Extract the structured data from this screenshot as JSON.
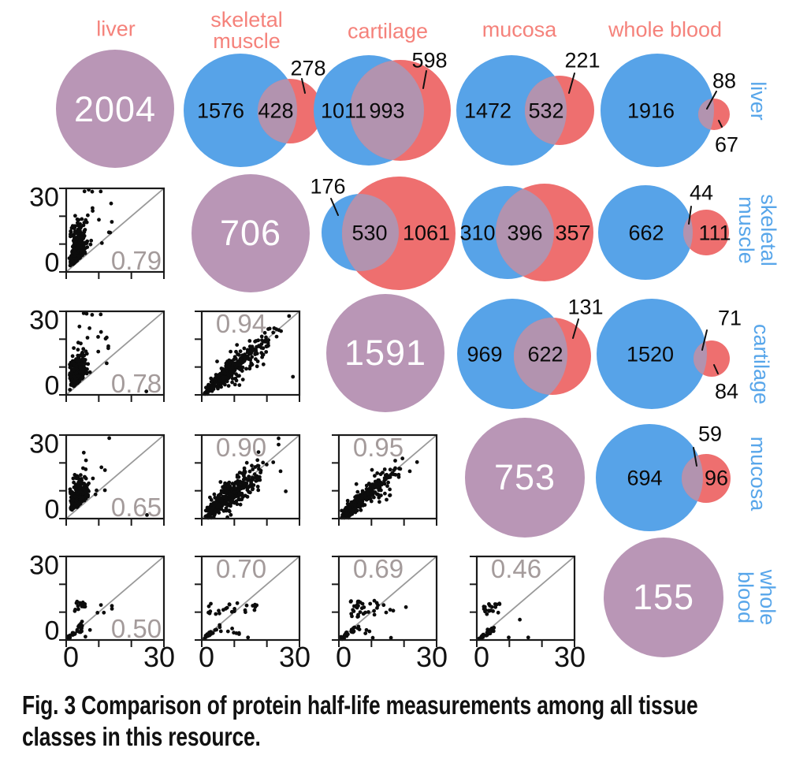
{
  "figure": {
    "colors": {
      "tissue_blue": "#57a3e8",
      "tissue_red": "#ee6f6f",
      "diagonal_purple": "#b996b6",
      "overlap_purple": "#b293af",
      "header_salmon": "#f5827b",
      "row_label_blue": "#58a6ea",
      "correlation_gray": "#a49b9b",
      "identity_line_gray": "#999999"
    },
    "column_headers": [
      "liver",
      "skeletal\nmuscle",
      "cartilage",
      "mucosa",
      "whole blood"
    ],
    "row_labels": [
      "liver",
      "skeletal\nmuscle",
      "cartilage",
      "mucosa",
      "whole blood"
    ],
    "caption_line1": "Fig. 3 Comparison of protein half-life measurements among all tissue",
    "caption_line2": "classes in this resource."
  },
  "chart_data": {
    "type": "matrix",
    "description": "5x5 tissue comparison matrix: diagonal circles show total proteins per tissue; upper triangle shows pairwise Venn overlaps (blue = row tissue only, purple = shared, red = column tissue only); lower triangle shows protein half-life scatter plots with correlation values, axes 0-30 with identity line",
    "tissues": [
      "liver",
      "skeletal muscle",
      "cartilage",
      "mucosa",
      "whole blood"
    ],
    "diagonal_totals": [
      2004,
      706,
      1591,
      753,
      155
    ],
    "axis": {
      "min": 0,
      "max": 30
    },
    "venn": [
      {
        "row": "liver",
        "col": "skeletal muscle",
        "row_only": 1576,
        "shared": 428,
        "col_only": 278
      },
      {
        "row": "liver",
        "col": "cartilage",
        "row_only": 1011,
        "shared": 993,
        "col_only": 598
      },
      {
        "row": "liver",
        "col": "mucosa",
        "row_only": 1472,
        "shared": 532,
        "col_only": 221
      },
      {
        "row": "liver",
        "col": "whole blood",
        "row_only": 1916,
        "shared": 88,
        "col_only": 67
      },
      {
        "row": "skeletal muscle",
        "col": "cartilage",
        "row_only": 176,
        "shared": 530,
        "col_only": 1061
      },
      {
        "row": "skeletal muscle",
        "col": "mucosa",
        "row_only": 310,
        "shared": 396,
        "col_only": 357
      },
      {
        "row": "skeletal muscle",
        "col": "whole blood",
        "row_only": 662,
        "shared": 44,
        "col_only": 111
      },
      {
        "row": "cartilage",
        "col": "mucosa",
        "row_only": 969,
        "shared": 622,
        "col_only": 131
      },
      {
        "row": "cartilage",
        "col": "whole blood",
        "row_only": 1520,
        "shared": 71,
        "col_only": 84
      },
      {
        "row": "mucosa",
        "col": "whole blood",
        "row_only": 694,
        "shared": 59,
        "col_only": 96
      }
    ],
    "scatter": [
      {
        "row": "skeletal muscle",
        "col": "liver",
        "r": 0.79,
        "label": "0.79"
      },
      {
        "row": "cartilage",
        "col": "liver",
        "r": 0.78,
        "label": "0.78"
      },
      {
        "row": "cartilage",
        "col": "skeletal muscle",
        "r": 0.94,
        "label": "0.94"
      },
      {
        "row": "mucosa",
        "col": "liver",
        "r": 0.65,
        "label": "0.65"
      },
      {
        "row": "mucosa",
        "col": "skeletal muscle",
        "r": 0.9,
        "label": "0.90"
      },
      {
        "row": "mucosa",
        "col": "cartilage",
        "r": 0.95,
        "label": "0.95"
      },
      {
        "row": "whole blood",
        "col": "liver",
        "r": 0.5,
        "label": "0.50"
      },
      {
        "row": "whole blood",
        "col": "skeletal muscle",
        "r": 0.7,
        "label": "0.70"
      },
      {
        "row": "whole blood",
        "col": "cartilage",
        "r": 0.69,
        "label": "0.69"
      },
      {
        "row": "whole blood",
        "col": "mucosa",
        "r": 0.46,
        "label": "0.46"
      }
    ]
  }
}
